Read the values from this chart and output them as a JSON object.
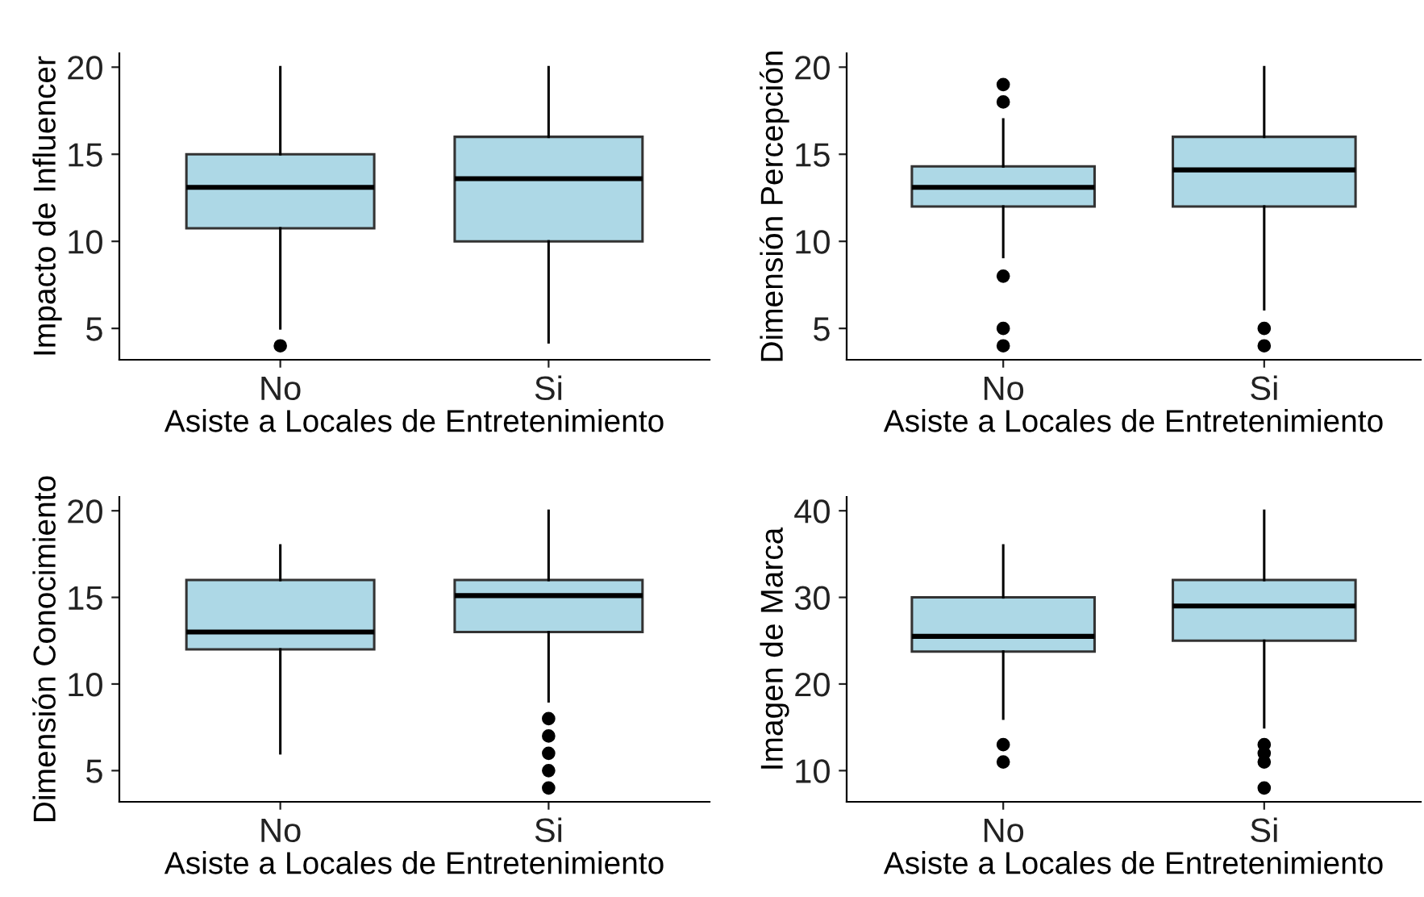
{
  "chart_data": [
    {
      "type": "box",
      "xlabel": "Asiste a Locales de Entretenimiento",
      "ylabel": "Impacto de Influencer",
      "categories": [
        "No",
        "Si"
      ],
      "color": "#add8e6",
      "ylim": [
        3.2,
        20.8
      ],
      "yticks": [
        5,
        10,
        15,
        20
      ],
      "grid": false,
      "boxes": [
        {
          "low": 5,
          "q1": 10.75,
          "median": 13.1,
          "q3": 15,
          "high": 20,
          "outliers": [
            4
          ]
        },
        {
          "low": 4.2,
          "q1": 10,
          "median": 13.6,
          "q3": 16,
          "high": 20
        }
      ]
    },
    {
      "type": "box",
      "xlabel": "Asiste a Locales de Entretenimiento",
      "ylabel": "Dimensión Percepción",
      "categories": [
        "No",
        "Si"
      ],
      "color": "#add8e6",
      "ylim": [
        3.2,
        20.8
      ],
      "yticks": [
        5,
        10,
        15,
        20
      ],
      "grid": false,
      "boxes": [
        {
          "low": 9.1,
          "q1": 12,
          "median": 13.1,
          "q3": 14.3,
          "high": 17,
          "outliers": [
            19,
            18,
            8,
            5,
            4
          ]
        },
        {
          "low": 6.1,
          "q1": 12,
          "median": 14.1,
          "q3": 16,
          "high": 20,
          "outliers": [
            5,
            4
          ]
        }
      ]
    },
    {
      "type": "box",
      "xlabel": "Asiste a Locales de Entretenimiento",
      "ylabel": "Dimensión Conocimiento",
      "categories": [
        "No",
        "Si"
      ],
      "color": "#add8e6",
      "ylim": [
        3.2,
        20.8
      ],
      "yticks": [
        5,
        10,
        15,
        20
      ],
      "grid": false,
      "boxes": [
        {
          "low": 6,
          "q1": 12,
          "median": 13,
          "q3": 16,
          "high": 18
        },
        {
          "low": 9,
          "q1": 13,
          "median": 15.1,
          "q3": 16,
          "high": 20,
          "outliers": [
            8,
            7,
            6,
            5,
            4
          ]
        }
      ]
    },
    {
      "type": "box",
      "xlabel": "Asiste a Locales de Entretenimiento",
      "ylabel": "Imagen de Marca",
      "categories": [
        "No",
        "Si"
      ],
      "color": "#add8e6",
      "ylim": [
        6.4,
        41.6
      ],
      "yticks": [
        10,
        20,
        30,
        40
      ],
      "grid": false,
      "boxes": [
        {
          "low": 16,
          "q1": 23.75,
          "median": 25.5,
          "q3": 30,
          "high": 36,
          "outliers": [
            13,
            11
          ]
        },
        {
          "low": 15,
          "q1": 25,
          "median": 29,
          "q3": 32,
          "high": 40,
          "outliers": [
            13,
            12,
            11,
            8
          ]
        }
      ]
    }
  ]
}
